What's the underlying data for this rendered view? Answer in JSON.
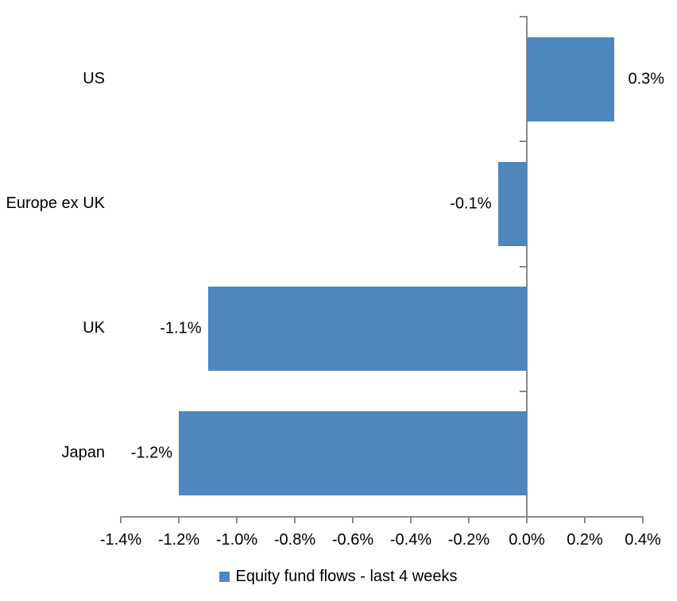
{
  "chart_data": {
    "type": "bar",
    "orientation": "horizontal",
    "title": "",
    "xlabel": "",
    "ylabel": "",
    "categories": [
      "US",
      "Europe ex UK",
      "UK",
      "Japan"
    ],
    "values": [
      0.3,
      -0.1,
      -1.1,
      -1.2
    ],
    "data_labels": [
      "0.3%",
      "-0.1%",
      "-1.1%",
      "-1.2%"
    ],
    "series_name": "Equity fund flows - last 4 weeks",
    "x_axis": {
      "min": -1.4,
      "max": 0.4,
      "tick_step": 0.2,
      "tick_labels": [
        "-1.4%",
        "-1.2%",
        "-1.0%",
        "-0.8%",
        "-0.6%",
        "-0.4%",
        "-0.2%",
        "0.0%",
        "0.2%",
        "0.4%"
      ]
    },
    "grid": false,
    "legend_position": "bottom",
    "colors": {
      "bar": "#4E87BE",
      "axis": "#898989",
      "text": "#000000",
      "background": "#FFFFFF"
    }
  }
}
